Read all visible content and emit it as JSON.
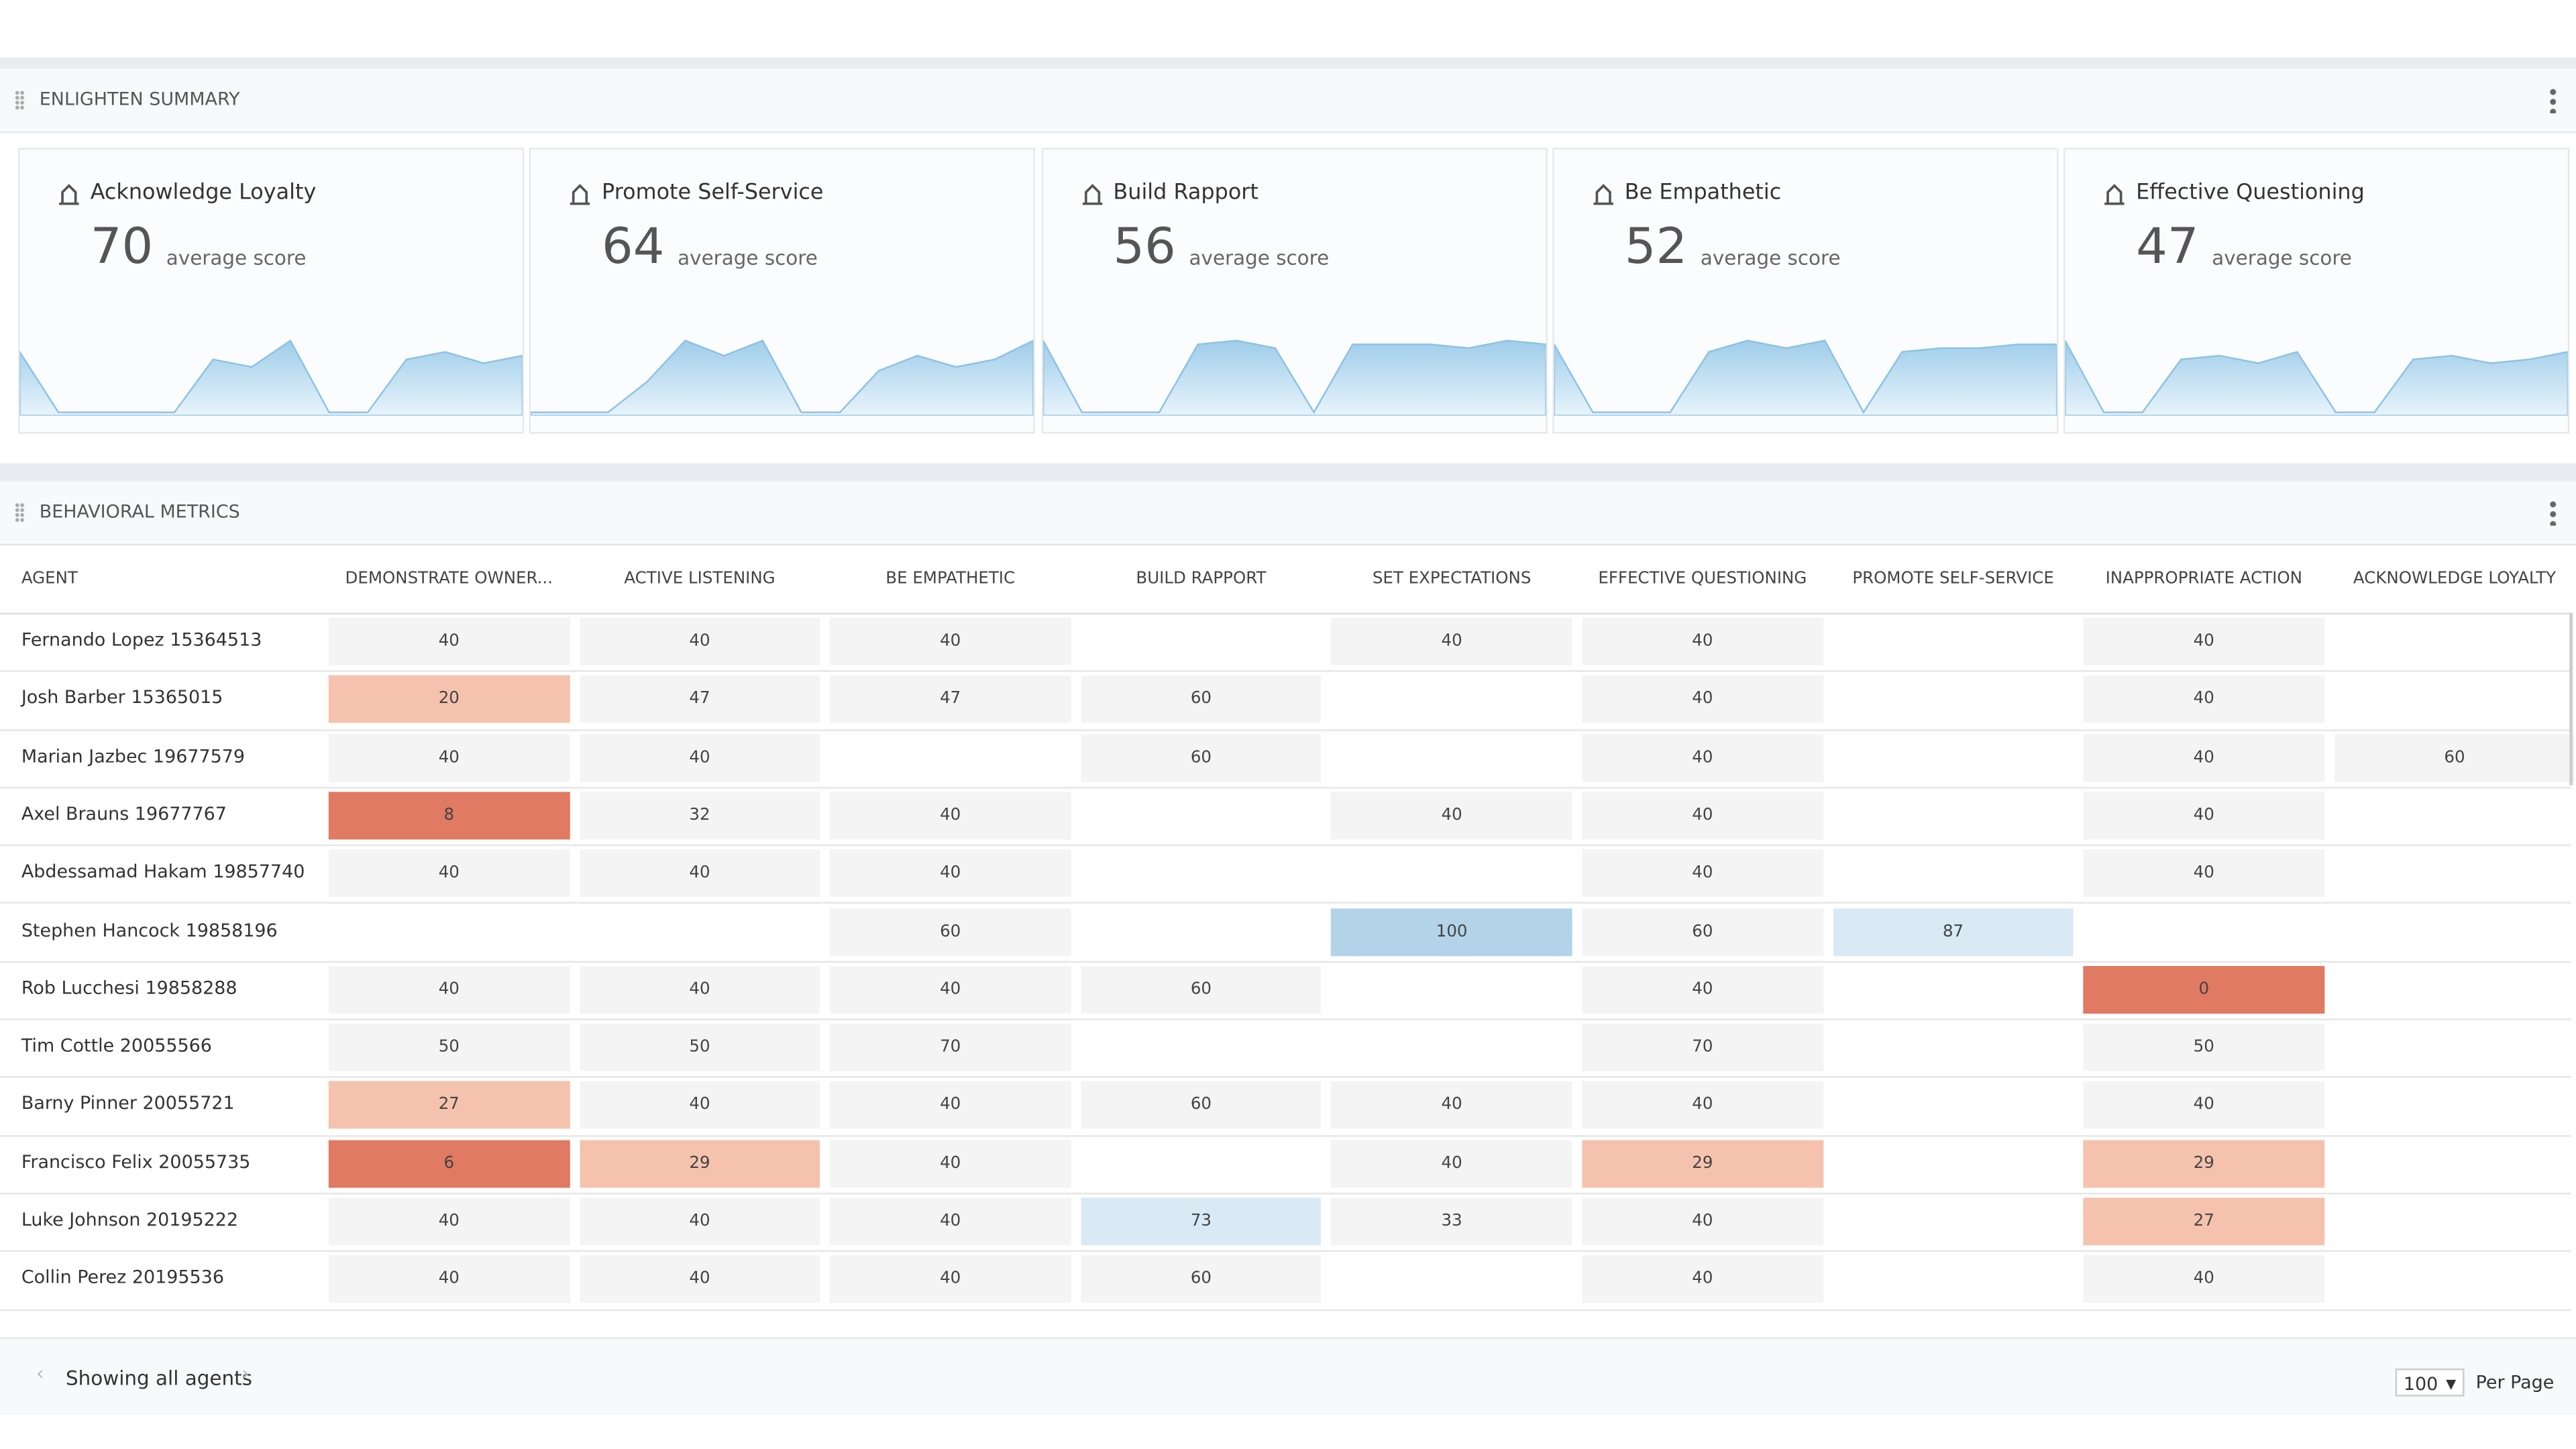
{
  "summary": {
    "title": "ENLIGHTEN SUMMARY",
    "cards": [
      {
        "title": "Acknowledge Loyalty",
        "score": 70,
        "score_caption": "average score",
        "trend": [
          80,
          0,
          0,
          0,
          0,
          70,
          60,
          95,
          0,
          0,
          70,
          80,
          65,
          75
        ]
      },
      {
        "title": "Promote Self-Service",
        "score": 64,
        "score_caption": "average score",
        "trend": [
          0,
          0,
          0,
          40,
          95,
          75,
          95,
          0,
          0,
          55,
          75,
          60,
          70,
          95
        ]
      },
      {
        "title": "Build Rapport",
        "score": 56,
        "score_caption": "average score",
        "trend": [
          95,
          0,
          0,
          0,
          90,
          95,
          85,
          0,
          90,
          90,
          90,
          85,
          95,
          90
        ]
      },
      {
        "title": "Be Empathetic",
        "score": 52,
        "score_caption": "average score",
        "trend": [
          90,
          0,
          0,
          0,
          80,
          95,
          85,
          95,
          0,
          80,
          85,
          85,
          90,
          90
        ]
      },
      {
        "title": "Effective Questioning",
        "score": 47,
        "score_caption": "average score",
        "trend": [
          95,
          0,
          0,
          70,
          75,
          65,
          80,
          0,
          0,
          70,
          75,
          65,
          70,
          80
        ]
      }
    ]
  },
  "metrics": {
    "title": "BEHAVIORAL METRICS",
    "columns": [
      "AGENT",
      "DEMONSTRATE OWNER...",
      "ACTIVE LISTENING",
      "BE EMPATHETIC",
      "BUILD RAPPORT",
      "SET EXPECTATIONS",
      "EFFECTIVE QUESTIONING",
      "PROMOTE SELF-SERVICE",
      "INAPPROPRIATE ACTION",
      "ACKNOWLEDGE LOYALTY"
    ],
    "rows": [
      {
        "agent": "Fernando Lopez 15364513",
        "values": [
          40,
          40,
          40,
          null,
          40,
          40,
          null,
          40,
          null
        ]
      },
      {
        "agent": "Josh Barber 15365015",
        "values": [
          20,
          47,
          47,
          60,
          null,
          40,
          null,
          40,
          null
        ]
      },
      {
        "agent": "Marian Jazbec 19677579",
        "values": [
          40,
          40,
          null,
          60,
          null,
          40,
          null,
          40,
          60
        ]
      },
      {
        "agent": "Axel Brauns 19677767",
        "values": [
          8,
          32,
          40,
          null,
          40,
          40,
          null,
          40,
          null
        ]
      },
      {
        "agent": "Abdessamad Hakam 19857740",
        "values": [
          40,
          40,
          40,
          null,
          null,
          40,
          null,
          40,
          null
        ]
      },
      {
        "agent": "Stephen Hancock 19858196",
        "values": [
          null,
          null,
          60,
          null,
          100,
          60,
          87,
          null,
          null
        ]
      },
      {
        "agent": "Rob Lucchesi 19858288",
        "values": [
          40,
          40,
          40,
          60,
          null,
          40,
          null,
          0,
          null
        ]
      },
      {
        "agent": "Tim Cottle 20055566",
        "values": [
          50,
          50,
          70,
          null,
          null,
          70,
          null,
          50,
          null
        ]
      },
      {
        "agent": "Barny Pinner 20055721",
        "values": [
          27,
          40,
          40,
          60,
          40,
          40,
          null,
          40,
          null
        ]
      },
      {
        "agent": "Francisco Felix 20055735",
        "values": [
          6,
          29,
          40,
          null,
          40,
          29,
          null,
          29,
          null
        ]
      },
      {
        "agent": "Luke Johnson 20195222",
        "values": [
          40,
          40,
          40,
          73,
          33,
          40,
          null,
          27,
          null
        ]
      },
      {
        "agent": "Collin Perez 20195536",
        "values": [
          40,
          40,
          40,
          60,
          null,
          40,
          null,
          40,
          null
        ]
      }
    ]
  },
  "footer": {
    "status": "Showing all agents",
    "page_size": 100,
    "page_size_label": "Per Page"
  }
}
